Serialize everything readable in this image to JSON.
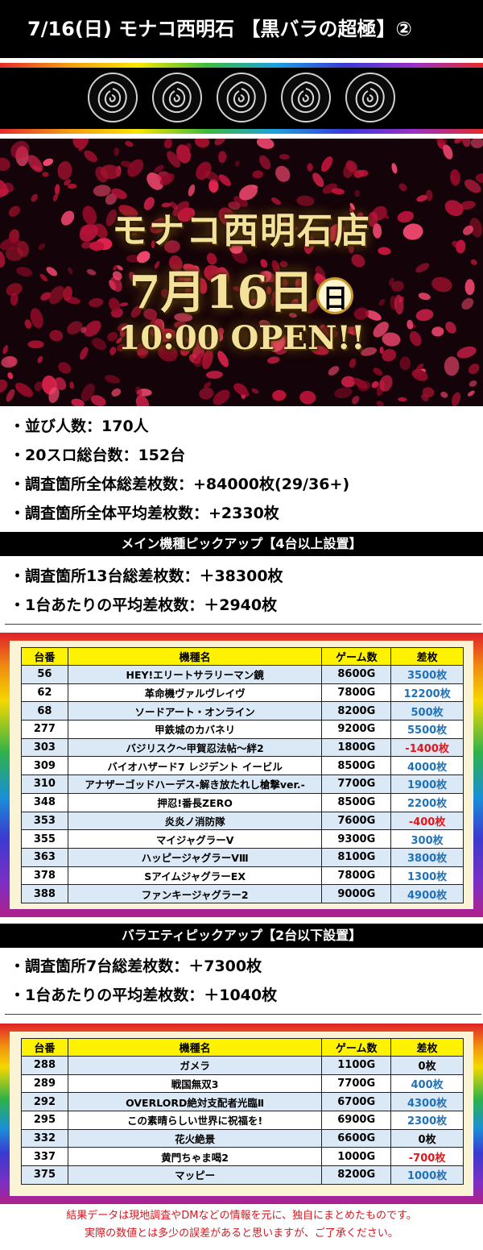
{
  "title": "7/16(日) モナコ西明石 【黒バラの超極】②",
  "hero": {
    "store": "モナコ西明石店",
    "date": "7月16日",
    "day": "日",
    "open": "10:00 OPEN!!"
  },
  "summary": [
    "・並び人数：170人",
    "・20スロ総台数：152台",
    "・調査箇所全体総差枚数：+84000枚(29/36+)",
    "・調査箇所全体平均差枚数：+2330枚"
  ],
  "main_section": {
    "title": "メイン機種ピックアップ【4台以上設置】",
    "stats": [
      "・調査箇所13台総差枚数：＋38300枚",
      "・1台あたりの平均差枚数：＋2940枚"
    ],
    "headers": [
      "台番",
      "機種名",
      "ゲーム数",
      "差枚"
    ],
    "rows": [
      [
        "56",
        "HEY!エリートサラリーマン鏡",
        "8600G",
        "3500枚"
      ],
      [
        "62",
        "革命機ヴァルヴレイヴ",
        "7800G",
        "12200枚"
      ],
      [
        "68",
        "ソードアート・オンライン",
        "8200G",
        "500枚"
      ],
      [
        "277",
        "甲鉄城のカバネリ",
        "9200G",
        "5500枚"
      ],
      [
        "303",
        "バジリスク～甲賀忍法帖～絆2",
        "1800G",
        "-1400枚"
      ],
      [
        "309",
        "バイオハザード7 レジデント イービル",
        "8500G",
        "4000枚"
      ],
      [
        "310",
        "アナザーゴッドハーデス-解き放たれし槍撃ver.-",
        "7700G",
        "1900枚"
      ],
      [
        "348",
        "押忍!番長ZERO",
        "8500G",
        "2200枚"
      ],
      [
        "353",
        "炎炎ノ消防隊",
        "7600G",
        "-400枚"
      ],
      [
        "355",
        "マイジャグラーV",
        "9300G",
        "300枚"
      ],
      [
        "363",
        "ハッピージャグラーVⅢ",
        "8100G",
        "3800枚"
      ],
      [
        "378",
        "SアイムジャグラーEX",
        "7800G",
        "1300枚"
      ],
      [
        "388",
        "ファンキージャグラー2",
        "9000G",
        "4900枚"
      ]
    ]
  },
  "variety_section": {
    "title": "バラエティピックアップ【2台以下設置】",
    "stats": [
      "・調査箇所7台総差枚数：＋7300枚",
      "・1台あたりの平均差枚数：＋1040枚"
    ],
    "headers": [
      "台番",
      "機種名",
      "ゲーム数",
      "差枚"
    ],
    "rows": [
      [
        "288",
        "ガメラ",
        "1100G",
        "0枚"
      ],
      [
        "289",
        "戦国無双3",
        "7700G",
        "400枚"
      ],
      [
        "292",
        "OVERLORD絶対支配者光臨Ⅱ",
        "6700G",
        "4300枚"
      ],
      [
        "295",
        "この素晴らしい世界に祝福を!",
        "6900G",
        "2300枚"
      ],
      [
        "332",
        "花火絶景",
        "6600G",
        "0枚"
      ],
      [
        "337",
        "黄門ちゃま喝2",
        "1000G",
        "-700枚"
      ],
      [
        "375",
        "マッピー",
        "8200G",
        "1000枚"
      ]
    ]
  },
  "footer": [
    "結果データは現地調査やDMなどの情報を元に、独自にまとめたものです。",
    "実際の数値とは多少の誤差があると思いますが、ご了承ください。"
  ],
  "colors": {
    "positive": "#1f72b8",
    "negative": "#e0161b",
    "header_yellow": "#fff200",
    "row_blue": "#dbe8f5",
    "footer_red": "#d9161f"
  }
}
